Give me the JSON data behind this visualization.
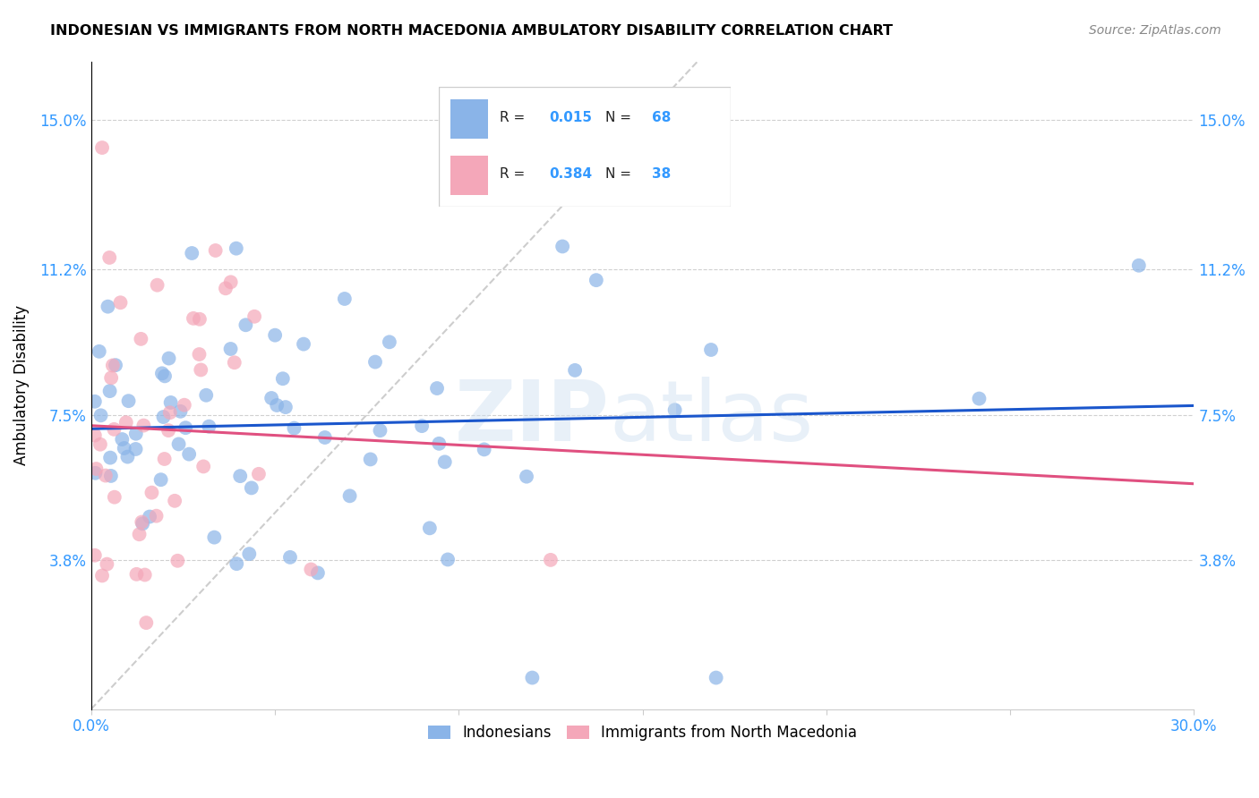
{
  "title": "INDONESIAN VS IMMIGRANTS FROM NORTH MACEDONIA AMBULATORY DISABILITY CORRELATION CHART",
  "source": "Source: ZipAtlas.com",
  "ylabel": "Ambulatory Disability",
  "xlim": [
    0.0,
    0.3
  ],
  "ylim": [
    0.0,
    0.165
  ],
  "R_blue": 0.015,
  "N_blue": 68,
  "R_pink": 0.384,
  "N_pink": 38,
  "legend_label_blue": "Indonesians",
  "legend_label_pink": "Immigrants from North Macedonia",
  "blue_color": "#8ab4e8",
  "pink_color": "#f4a7b9",
  "blue_line_color": "#1a56cc",
  "pink_line_color": "#e05080",
  "diag_line_color": "#c8c8c8",
  "yticks": [
    0.038,
    0.075,
    0.112,
    0.15
  ],
  "yticklabels": [
    "3.8%",
    "7.5%",
    "11.2%",
    "15.0%"
  ],
  "xtick_first": "0.0%",
  "xtick_last": "30.0%"
}
